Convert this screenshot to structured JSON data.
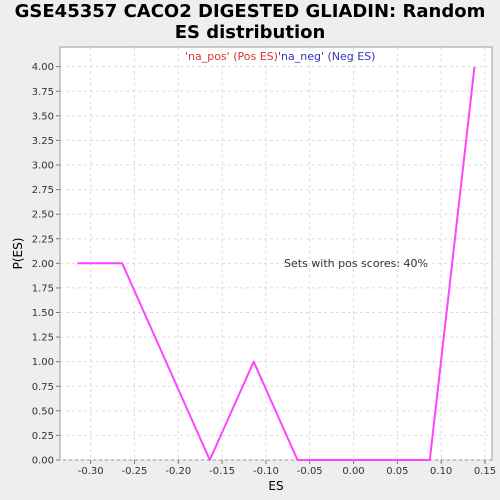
{
  "chart_data": {
    "type": "line",
    "title_line1": "GSE45357 CACO2 DIGESTED GLIADIN: Random",
    "title_line2": "ES distribution",
    "xlabel": "ES",
    "ylabel": "P(ES)",
    "xlim": [
      -0.335,
      0.158
    ],
    "ylim": [
      0,
      4.2
    ],
    "x_ticks": [
      -0.3,
      -0.25,
      -0.2,
      -0.15,
      -0.1,
      -0.05,
      0.0,
      0.05,
      0.1,
      0.15
    ],
    "x_tick_labels": [
      "-0.30",
      "-0.25",
      "-0.20",
      "-0.15",
      "-0.10",
      "-0.05",
      "0.00",
      "0.05",
      "0.10",
      "0.15"
    ],
    "y_ticks": [
      0,
      0.25,
      0.5,
      0.75,
      1.0,
      1.25,
      1.5,
      1.75,
      2.0,
      2.25,
      2.5,
      2.75,
      3.0,
      3.25,
      3.5,
      3.75,
      4.0
    ],
    "y_tick_labels": [
      "0.00",
      "0.25",
      "0.50",
      "0.75",
      "1.00",
      "1.25",
      "1.50",
      "1.75",
      "2.00",
      "2.25",
      "2.50",
      "2.75",
      "3.00",
      "3.25",
      "3.50",
      "3.75",
      "4.00"
    ],
    "grid": true,
    "legend": {
      "placement": "top-center",
      "entries": [
        {
          "label": "'na_pos' (Pos ES)",
          "color": "#dd3333"
        },
        {
          "label": "'na_neg' (Neg ES)",
          "color": "#3333bb"
        }
      ]
    },
    "annotation": "Sets with pos scores: 40%",
    "series": [
      {
        "color": "#ff44ff",
        "x": [
          -0.315,
          -0.264,
          -0.164,
          -0.114,
          -0.064,
          -0.014,
          0.036,
          0.087,
          0.138
        ],
        "y": [
          2.0,
          2.0,
          0.0,
          1.0,
          0.0,
          0.0,
          0.0,
          0.0,
          4.0
        ]
      }
    ]
  }
}
